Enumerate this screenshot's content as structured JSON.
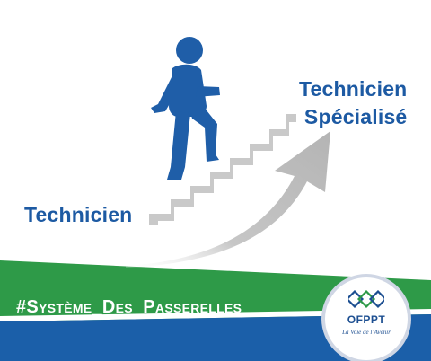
{
  "labels": {
    "start": "Technicien",
    "goal_line1": "Technicien",
    "goal_line2": "Spécialisé"
  },
  "banner": {
    "hashtag": "#Système_Des_Passerelles"
  },
  "logo": {
    "name": "OFPPT",
    "tagline": "La Voie de l’Avenir"
  },
  "colors": {
    "brand_blue": "#1d5aa3",
    "figure_blue": "#1f5ea8",
    "green_band": "#2e9a48",
    "blue_band": "#1b5fa9",
    "stairs_gray": "#c9c9c9",
    "arrow_gray": "#bdbdbd"
  },
  "icons": {
    "figure": "person-climbing-stairs-icon",
    "arrow": "curved-arrow-up-icon",
    "stairs": "stairs-icon"
  }
}
